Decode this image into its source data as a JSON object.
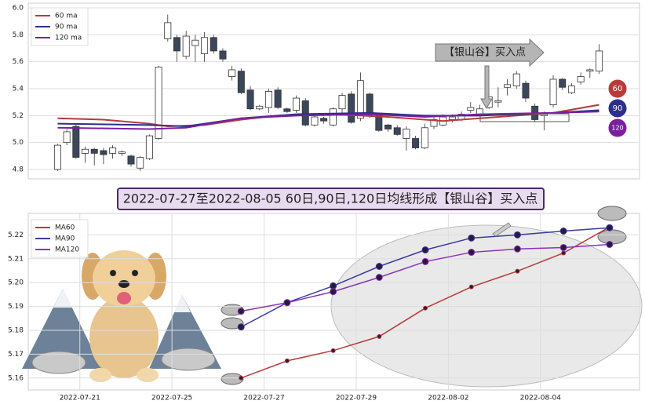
{
  "chart_data": [
    {
      "type": "candlestick",
      "open": [
        4.8,
        5.0,
        5.12,
        4.92,
        4.95,
        4.94,
        4.92,
        4.92,
        4.9,
        4.81,
        4.88,
        5.03,
        5.77,
        5.78,
        5.64,
        5.72,
        5.66,
        5.78,
        5.68,
        5.49,
        5.53,
        5.39,
        5.25,
        5.26,
        5.39,
        5.25,
        5.24,
        5.31,
        5.13,
        5.18,
        5.13,
        5.25,
        5.36,
        5.18,
        5.36,
        5.2,
        5.13,
        5.11,
        5.03,
        5.03,
        4.96,
        5.12,
        5.13,
        5.17,
        5.17,
        5.24,
        5.21,
        5.26,
        5.3,
        5.41,
        5.42,
        5.44,
        5.27,
        5.2,
        5.28,
        5.47,
        5.37,
        5.45,
        5.53,
        5.53
      ],
      "high": [
        4.99,
        5.1,
        5.14,
        4.97,
        4.96,
        4.96,
        4.98,
        4.94,
        4.91,
        4.9,
        5.06,
        5.57,
        5.95,
        5.8,
        5.83,
        5.8,
        5.82,
        5.8,
        5.7,
        5.57,
        5.55,
        5.42,
        5.28,
        5.4,
        5.41,
        5.26,
        5.35,
        5.33,
        5.22,
        5.19,
        5.26,
        5.37,
        5.38,
        5.52,
        5.37,
        5.22,
        5.14,
        5.13,
        5.12,
        5.05,
        5.14,
        5.2,
        5.21,
        5.21,
        5.23,
        5.3,
        5.28,
        5.37,
        5.41,
        5.47,
        5.53,
        5.46,
        5.29,
        5.23,
        5.5,
        5.48,
        5.44,
        5.52,
        5.55,
        5.73
      ],
      "low": [
        4.79,
        4.98,
        4.88,
        4.85,
        4.83,
        4.84,
        4.88,
        4.9,
        4.82,
        4.79,
        4.87,
        5.02,
        5.75,
        5.6,
        5.62,
        5.6,
        5.6,
        5.66,
        5.6,
        5.46,
        5.36,
        5.24,
        5.24,
        5.22,
        5.25,
        5.22,
        5.22,
        5.12,
        5.12,
        5.14,
        5.12,
        5.22,
        5.14,
        5.16,
        5.18,
        5.08,
        5.08,
        5.05,
        4.94,
        4.95,
        4.95,
        5.1,
        5.12,
        5.15,
        5.16,
        5.22,
        5.2,
        5.25,
        5.26,
        5.35,
        5.4,
        5.3,
        5.15,
        5.09,
        5.26,
        5.39,
        5.36,
        5.43,
        5.48,
        5.51
      ],
      "close": [
        4.98,
        5.08,
        4.89,
        4.95,
        4.92,
        4.91,
        4.96,
        4.93,
        4.84,
        4.89,
        5.05,
        5.56,
        5.89,
        5.68,
        5.79,
        5.76,
        5.78,
        5.68,
        5.62,
        5.54,
        5.37,
        5.25,
        5.27,
        5.38,
        5.26,
        5.23,
        5.33,
        5.13,
        5.19,
        5.16,
        5.25,
        5.35,
        5.15,
        5.46,
        5.2,
        5.09,
        5.1,
        5.06,
        5.1,
        4.96,
        5.11,
        5.17,
        5.19,
        5.19,
        5.21,
        5.26,
        5.25,
        5.34,
        5.31,
        5.43,
        5.51,
        5.33,
        5.17,
        5.21,
        5.47,
        5.41,
        5.42,
        5.49,
        5.54,
        5.68
      ],
      "up_color": "#ffffff",
      "down_color": "#3b475b",
      "series": [
        {
          "name": "60 ma",
          "color": "#b83a3a",
          "x": [
            0,
            5,
            10,
            12,
            16,
            20,
            24,
            30,
            36,
            42,
            48,
            54,
            59
          ],
          "values": [
            5.18,
            5.17,
            5.14,
            5.12,
            5.13,
            5.17,
            5.2,
            5.21,
            5.19,
            5.16,
            5.19,
            5.22,
            5.28
          ]
        },
        {
          "name": "90 ma",
          "color": "#2e2e8c",
          "x": [
            0,
            10,
            14,
            20,
            26,
            34,
            40,
            46,
            54,
            59
          ],
          "values": [
            5.14,
            5.13,
            5.12,
            5.18,
            5.21,
            5.22,
            5.2,
            5.2,
            5.22,
            5.24
          ]
        },
        {
          "name": "120 ma",
          "color": "#7b1fa0",
          "x": [
            0,
            10,
            14,
            20,
            26,
            34,
            40,
            46,
            54,
            59
          ],
          "values": [
            5.11,
            5.1,
            5.11,
            5.18,
            5.2,
            5.21,
            5.19,
            5.21,
            5.22,
            5.23
          ]
        }
      ],
      "end_labels": [
        "60",
        "90",
        "120"
      ],
      "annotation": "【银山谷】买入点",
      "xlim": [
        -3.2,
        63.4
      ],
      "ylim": [
        4.73,
        6.035
      ],
      "yticks": [
        4.8,
        {
          "value": 5,
          "label": "5.0"
        },
        5.2,
        5.4,
        5.6,
        5.8,
        {
          "value": 6,
          "label": "6.0"
        }
      ],
      "grid": true
    },
    {
      "type": "line",
      "title": "2022-07-27至2022-08-05 60日,90日,120日均线形成【银山谷】买入点",
      "x": [
        3.5,
        4.5,
        5.5,
        6.5,
        7.5,
        8.5,
        9.5,
        10.5,
        11.5
      ],
      "series": [
        {
          "name": "MA60",
          "color": "#b83a3a",
          "values": [
            5.16,
            5.1672,
            5.1715,
            5.1774,
            5.1893,
            5.1982,
            5.2048,
            5.2124,
            5.2233
          ]
        },
        {
          "name": "MA90",
          "color": "#3a3aa6",
          "values": [
            5.1814,
            5.1916,
            5.1986,
            5.2068,
            5.2137,
            5.2187,
            5.22,
            5.2216,
            5.223
          ]
        },
        {
          "name": "MA120",
          "color": "#8a34b8",
          "values": [
            5.188,
            5.1916,
            5.1962,
            5.2022,
            5.2088,
            5.2127,
            5.2141,
            5.2147,
            5.216
          ]
        }
      ],
      "xlim": [
        -1.12,
        12.15
      ],
      "ylim": [
        5.155,
        5.229
      ],
      "xticks": [
        {
          "value": 0,
          "label": "2022-07-21"
        },
        {
          "value": 2,
          "label": "2022-07-25"
        },
        {
          "value": 4,
          "label": "2022-07-27"
        },
        {
          "value": 6,
          "label": "2022-07-29"
        },
        {
          "value": 8,
          "label": "2022-08-02"
        },
        {
          "value": 10,
          "label": "2022-08-04"
        }
      ],
      "yticks": [
        5.16,
        5.17,
        5.18,
        5.19,
        {
          "value": 5.2,
          "label": "5.20"
        },
        5.21,
        5.22
      ],
      "grid": true
    }
  ]
}
